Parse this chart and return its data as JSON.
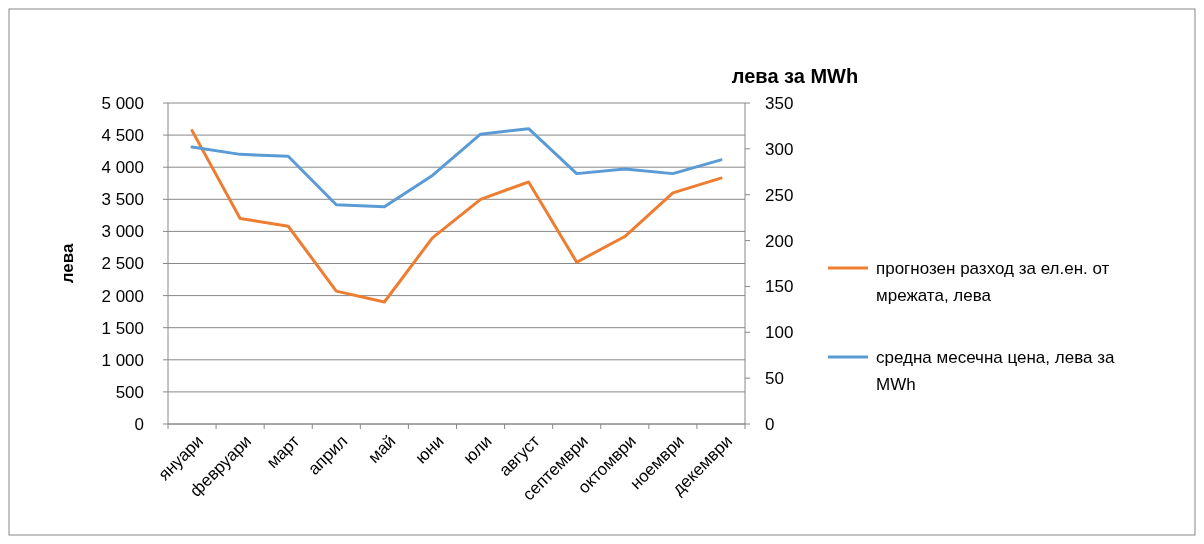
{
  "chart_data": {
    "type": "line",
    "ylabel": "лева",
    "y2label": "лева за MWh",
    "categories": [
      "януари",
      "февруари",
      "март",
      "април",
      "май",
      "юни",
      "юли",
      "август",
      "септември",
      "октомври",
      "ноември",
      "декември"
    ],
    "series": [
      {
        "name": "прогнозен разход за ел.ен. от мрежата, лева",
        "color": "#ed7d31",
        "values": [
          4570,
          3200,
          3080,
          2070,
          1900,
          2900,
          3500,
          3770,
          2520,
          2920,
          3600,
          3830
        ]
      },
      {
        "name": "средна месечна цена, лева за MWh",
        "color": "#5b9bd5",
        "axis": "y2",
        "values": [
          302,
          294,
          292,
          239,
          237,
          271,
          316,
          322,
          273,
          278,
          273,
          288
        ]
      }
    ],
    "ylim": [
      0,
      5000
    ],
    "yticks": [
      0,
      500,
      {
        "value": 1000,
        "label": "1 000"
      },
      {
        "value": 1500,
        "label": "1 500"
      },
      {
        "value": 2000,
        "label": "2 000"
      },
      {
        "value": 2500,
        "label": "2 500"
      },
      {
        "value": 3000,
        "label": "3 000"
      },
      {
        "value": 3500,
        "label": "3 500"
      },
      {
        "value": 4000,
        "label": "4 000"
      },
      {
        "value": 4500,
        "label": "4 500"
      },
      {
        "value": 5000,
        "label": "5 000"
      }
    ],
    "y2lim": [
      0,
      350
    ],
    "y2ticks": [
      0,
      50,
      100,
      150,
      200,
      250,
      300,
      350
    ],
    "grid": "y",
    "legend": "right",
    "marker": "none",
    "line_style": "solid"
  }
}
